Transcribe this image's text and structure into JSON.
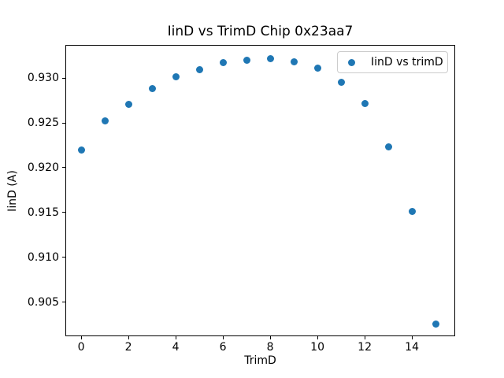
{
  "figure": {
    "background": "#ffffff",
    "text_color": "#000000",
    "spine_color": "#000000",
    "legend_border_color": "#cccccc"
  },
  "chart_data": {
    "type": "scatter",
    "title": "IinD vs TrimD Chip 0x23aa7",
    "xlabel": "TrimD",
    "ylabel": "IinD (A)",
    "grid": false,
    "legend": {
      "position": "upper-right",
      "entries": [
        {
          "label": "IinD vs trimD",
          "marker": "circle",
          "color": "#1f77b4"
        }
      ]
    },
    "series": [
      {
        "name": "IinD vs trimD",
        "color": "#1f77b4",
        "x": [
          0,
          1,
          2,
          3,
          4,
          5,
          6,
          7,
          8,
          9,
          10,
          11,
          12,
          13,
          14,
          15
        ],
        "y": [
          0.922,
          0.9252,
          0.9271,
          0.9288,
          0.9301,
          0.9309,
          0.9317,
          0.932,
          0.9322,
          0.9318,
          0.9311,
          0.9295,
          0.9272,
          0.9223,
          0.9151,
          0.9026
        ]
      }
    ],
    "xlim": [
      -0.67,
      15.83
    ],
    "ylim": [
      0.9012,
      0.9337
    ],
    "xticks": {
      "values": [
        0,
        2,
        4,
        6,
        8,
        10,
        12,
        14
      ],
      "labels": [
        "0",
        "2",
        "4",
        "6",
        "8",
        "10",
        "12",
        "14"
      ]
    },
    "yticks": {
      "values": [
        0.905,
        0.91,
        0.915,
        0.92,
        0.925,
        0.93
      ],
      "labels": [
        "0.905",
        "0.910",
        "0.915",
        "0.920",
        "0.925",
        "0.930"
      ]
    }
  }
}
